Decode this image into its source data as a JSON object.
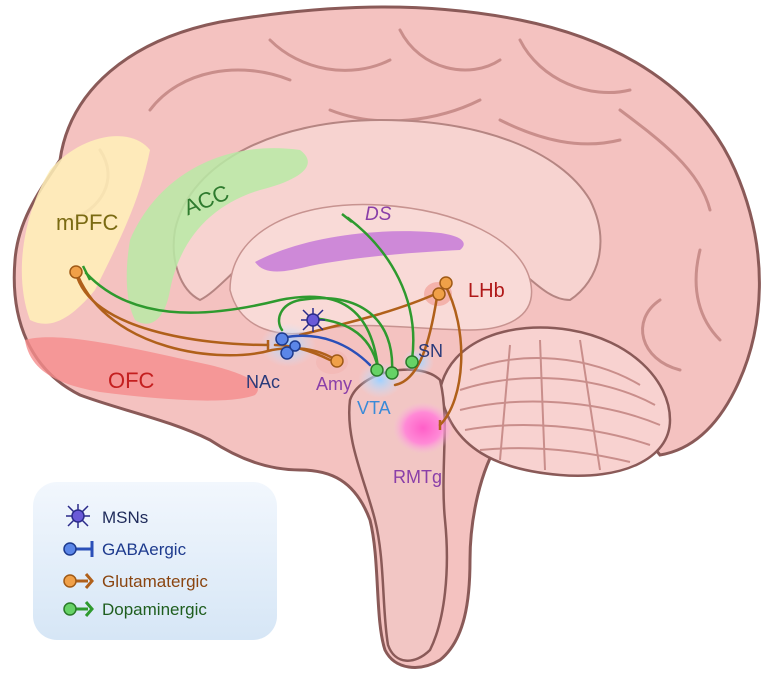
{
  "regions": {
    "mpfc": "mPFC",
    "acc": "ACC",
    "ofc": "OFC",
    "ds": "DS",
    "lhb": "LHb",
    "sn": "SN",
    "nac": "NAc",
    "amy": "Amy",
    "vta": "VTA",
    "rmtg": "RMTg"
  },
  "legend": {
    "msns": "MSNs",
    "gaba": "GABAergic",
    "glut": "Glutamatergic",
    "dopa": "Dopaminergic"
  },
  "colors": {
    "gaba": "#2a4fb8",
    "glut": "#b0601a",
    "dopa": "#2e9a2e",
    "brain": "#f6c9c6",
    "outline": "#8a5a58"
  }
}
